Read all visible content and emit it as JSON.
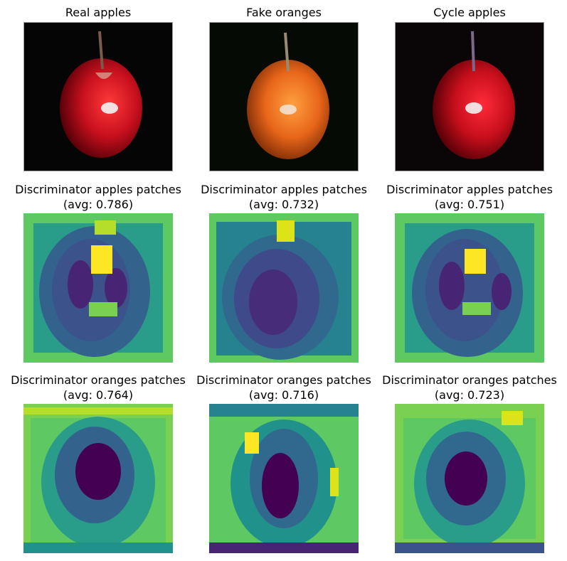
{
  "row1": [
    {
      "title": "Real apples"
    },
    {
      "title": "Fake oranges"
    },
    {
      "title": "Cycle apples"
    }
  ],
  "row2": [
    {
      "line1": "Discriminator apples patches",
      "line2": "(avg: 0.786)"
    },
    {
      "line1": "Discriminator apples patches",
      "line2": "(avg: 0.732)"
    },
    {
      "line1": "Discriminator apples patches",
      "line2": "(avg: 0.751)"
    }
  ],
  "row3": [
    {
      "line1": "Discriminator oranges patches",
      "line2": "(avg: 0.764)"
    },
    {
      "line1": "Discriminator oranges patches",
      "line2": "(avg: 0.716)"
    },
    {
      "line1": "Discriminator oranges patches",
      "line2": "(avg: 0.723)"
    }
  ],
  "colors": {
    "apple_red": "#c8101e",
    "orange": "#e8661a",
    "viridis_dark": "#440154",
    "viridis_mid": "#21918c",
    "viridis_green": "#5ec962",
    "viridis_yellow": "#fde725"
  }
}
